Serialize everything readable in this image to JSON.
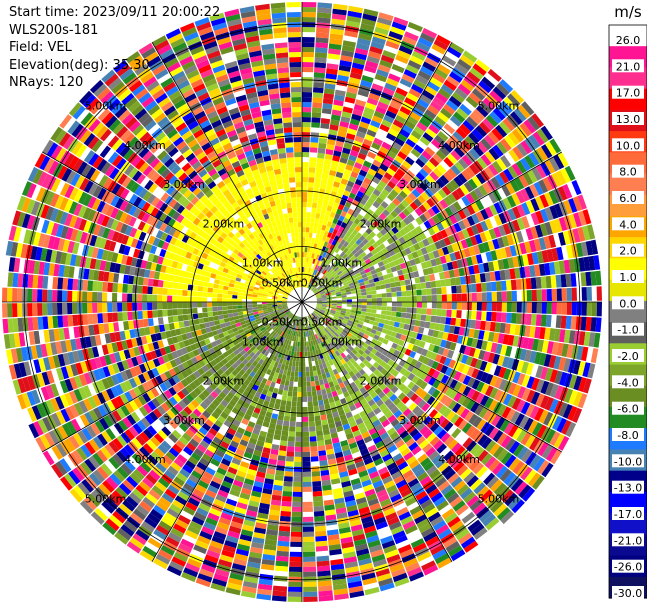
{
  "header": {
    "start_time": "Start time: 2023/09/11 20:00:22",
    "instrument": "WLS200s-181",
    "field": "Field: VEL",
    "elevation": "Elevation(deg): 35.30",
    "nrays": "NRays: 120"
  },
  "chart_data": {
    "type": "ppi",
    "field": "VEL",
    "elevation_deg": 35.3,
    "n_rays": 120,
    "range_rings_km": [
      0.5,
      1.0,
      2.0,
      3.0,
      4.0,
      5.0
    ],
    "ring_labels": [
      "0.50km",
      "1.00km",
      "2.00km",
      "3.00km",
      "4.00km",
      "5.00km"
    ],
    "max_range_km": 5.4,
    "gate_count": 60,
    "colorbar": {
      "unit": "m/s",
      "ticks": [
        "26.0",
        "21.0",
        "17.0",
        "13.0",
        "10.0",
        "8.0",
        "6.0",
        "4.0",
        "2.0",
        "1.0",
        "0.0",
        "-1.0",
        "-2.0",
        "-4.0",
        "-6.0",
        "-8.0",
        "-10.0",
        "-13.0",
        "-17.0",
        "-21.0",
        "-26.0",
        "-30.0"
      ],
      "colors": [
        "#ffffff",
        "#ff1493",
        "#ff2f8f",
        "#ff0000",
        "#e0101a",
        "#ff3a10",
        "#ff6a3a",
        "#ff7f50",
        "#ff9e3a",
        "#ffa500",
        "#ffd700",
        "#ffff00",
        "#e6e600",
        "#808080",
        "#606060",
        "#9acd32",
        "#7da52a",
        "#6b8e23",
        "#228b22",
        "#1e7aff",
        "#4682b4",
        "#00008b",
        "#0000ff",
        "#1010c8",
        "#0a0a90",
        "#000080",
        "#101060"
      ]
    },
    "dominant_regions": [
      {
        "azimuth_range_deg": [
          270,
          20
        ],
        "range_km": [
          0.3,
          2.6
        ],
        "value_class": "2.0 to 4.0"
      },
      {
        "azimuth_range_deg": [
          30,
          160
        ],
        "range_km": [
          0.3,
          2.6
        ],
        "value_class": "-2.0 to 0.0"
      },
      {
        "azimuth_range_deg": [
          160,
          270
        ],
        "range_km": [
          0.3,
          2.6
        ],
        "value_class": "-4.0 to -1.0"
      },
      {
        "azimuth_range_deg": [
          0,
          360
        ],
        "range_km": [
          2.6,
          5.4
        ],
        "value_class": "noise (all values)"
      }
    ]
  }
}
